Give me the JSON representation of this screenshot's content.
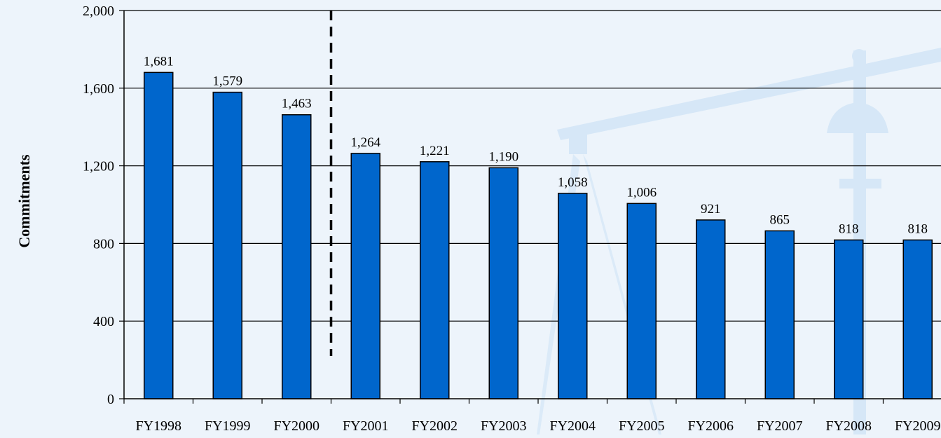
{
  "chart_data": {
    "type": "bar",
    "categories": [
      "FY1998",
      "FY1999",
      "FY2000",
      "FY2001",
      "FY2002",
      "FY2003",
      "FY2004",
      "FY2005",
      "FY2006",
      "FY2007",
      "FY2008",
      "FY2009"
    ],
    "values": [
      1681,
      1579,
      1463,
      1264,
      1221,
      1190,
      1058,
      1006,
      921,
      865,
      818,
      818
    ],
    "data_labels": [
      "1,681",
      "1,579",
      "1,463",
      "1,264",
      "1,221",
      "1,190",
      "1,058",
      "1,006",
      "921",
      "865",
      "818",
      "818"
    ],
    "title": "",
    "xlabel": "",
    "ylabel": "Commitments",
    "ylim": [
      0,
      2000
    ],
    "yticks": [
      0,
      400,
      800,
      1200,
      1600,
      2000
    ],
    "ytick_labels": [
      "0",
      "400",
      "800",
      "1,200",
      "1,600",
      "2,000"
    ],
    "grid": true,
    "divider_after_category": "FY2000",
    "colors": {
      "bar": "#0066cc",
      "bar_stroke": "#000000",
      "background": "#edf4fb",
      "watermark": "#d6e7f7"
    }
  }
}
